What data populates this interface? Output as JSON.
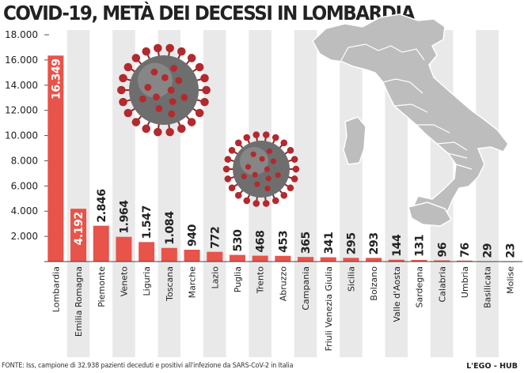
{
  "title": "COVID-19, METÀ DEI DECESSI IN LOMBARDIA",
  "chart_data": {
    "type": "bar",
    "title": "COVID-19, METÀ DEI DECESSI IN LOMBARDIA",
    "xlabel": "",
    "ylabel": "",
    "ylim": [
      0,
      18000
    ],
    "yticks": [
      2000,
      4000,
      6000,
      8000,
      10000,
      12000,
      14000,
      16000,
      18000
    ],
    "ytick_labels": [
      "2.000",
      "4.000",
      "6.000",
      "8.000",
      "10.000",
      "12.000",
      "14.000",
      "16.000",
      "18.000"
    ],
    "categories": [
      "Lombardia",
      "Emilia Romagna",
      "Piemonte",
      "Veneto",
      "Liguria",
      "Toscana",
      "Marche",
      "Lazio",
      "Puglia",
      "Trento",
      "Abruzzo",
      "Campania",
      "Friuli Venezia Giulia",
      "Sicilia",
      "Bolzano",
      "Valle d'Aosta",
      "Sardegna",
      "Calabria",
      "Umbria",
      "Basilicata",
      "Molise"
    ],
    "values": [
      16349,
      4192,
      2846,
      1964,
      1547,
      1084,
      940,
      772,
      530,
      468,
      453,
      365,
      341,
      295,
      293,
      144,
      131,
      96,
      76,
      29,
      23
    ],
    "value_labels": [
      "16.349",
      "4.192",
      "2.846",
      "1.964",
      "1.547",
      "1.084",
      "940",
      "772",
      "530",
      "468",
      "453",
      "365",
      "341",
      "295",
      "293",
      "144",
      "131",
      "96",
      "76",
      "29",
      "23"
    ],
    "grid": false
  },
  "footer": {
    "source": "FONTE: Iss, campione di 32.938 pazienti deceduti e positivi  all'infezione da SARS-CoV-2 in Italia",
    "credit": "L'EGO - HUB"
  },
  "colors": {
    "bar": "#e8534a",
    "stripe_light": "#ffffff",
    "stripe_dark": "#e9e9e9",
    "map_fill": "#bdbdbd",
    "virus_core": "#6e6e6e",
    "virus_spike": "#b22a2e"
  }
}
